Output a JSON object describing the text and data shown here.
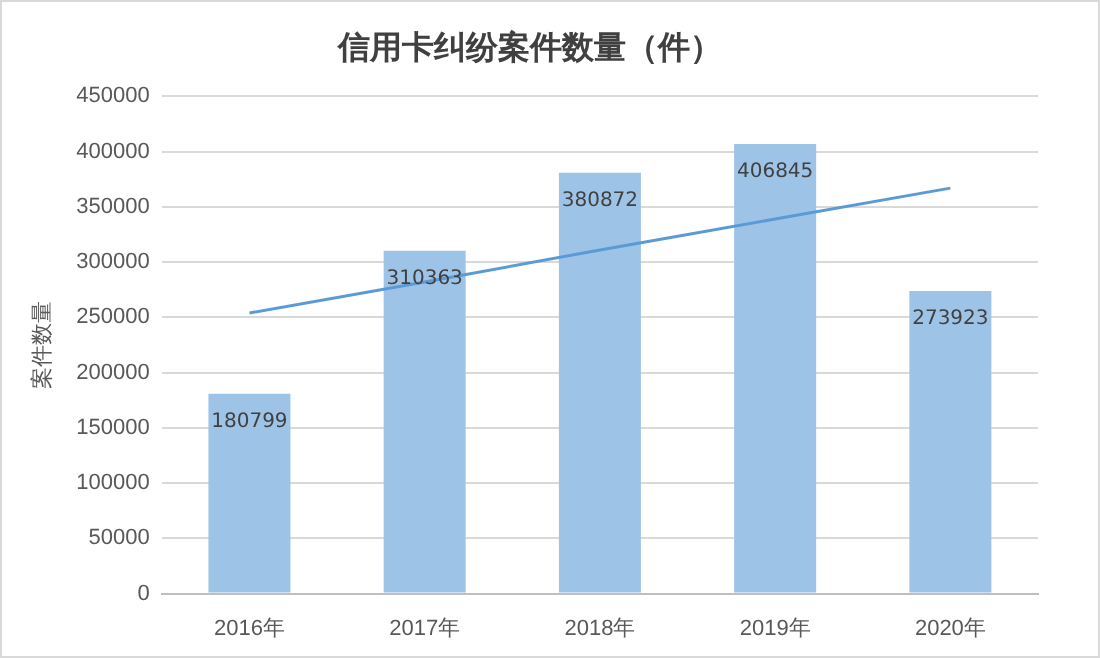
{
  "chart_data": {
    "type": "bar",
    "title": "信用卡纠纷案件数量（件）",
    "ylabel": "案件数量",
    "categories": [
      "2016年",
      "2017年",
      "2018年",
      "2019年",
      "2020年"
    ],
    "series": [
      {
        "color": "#9dc3e6",
        "values": [
          180799,
          310363,
          380872,
          406845,
          273923
        ],
        "value_labels": [
          "180799",
          "310363",
          "380872",
          "406845",
          "273923"
        ]
      },
      {
        "type": "line",
        "color": "#5b9bd5",
        "x": [
          "2016年",
          "2017年",
          "2018年",
          "2019年",
          "2020年"
        ],
        "values": [
          254000,
          282000,
          311000,
          339000,
          367000
        ]
      }
    ],
    "ylim": [
      0,
      450000
    ],
    "yticks": [
      0,
      50000,
      100000,
      150000,
      200000,
      250000,
      300000,
      350000,
      400000,
      450000
    ],
    "grid": "y",
    "legend": false,
    "marker": "none",
    "line_style": "solid"
  }
}
